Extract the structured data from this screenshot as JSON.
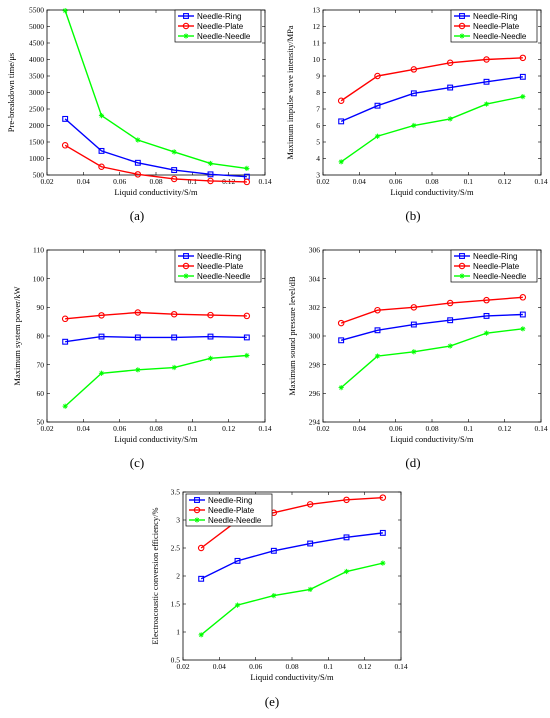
{
  "chart_data": [
    {
      "type": "line",
      "panel_label": "(a)",
      "xlabel": "Liquid conductivity/S/m",
      "ylabel": "Pre-breakdown time/μs",
      "xlim": [
        0.02,
        0.14
      ],
      "ylim": [
        500,
        5500
      ],
      "xticks": [
        "0.02",
        "0.04",
        "0.06",
        "0.08",
        "0.1",
        "0.12",
        "0.14"
      ],
      "yticks": [
        "500",
        "1000",
        "1500",
        "2000",
        "2500",
        "3000",
        "3500",
        "4000",
        "4500",
        "5000",
        "5500"
      ],
      "legend_position": "top-right",
      "x": [
        0.03,
        0.05,
        0.07,
        0.09,
        0.11,
        0.13
      ],
      "series": [
        {
          "name": "Needle-Ring",
          "color": "#0000ff",
          "marker": "square",
          "values": [
            2200,
            1230,
            870,
            650,
            520,
            450
          ]
        },
        {
          "name": "Needle-Plate",
          "color": "#ff0000",
          "marker": "circle",
          "values": [
            1400,
            750,
            520,
            380,
            320,
            290
          ]
        },
        {
          "name": "Needle-Needle",
          "color": "#00ff00",
          "marker": "star",
          "values": [
            5480,
            2300,
            1560,
            1200,
            850,
            700
          ]
        }
      ]
    },
    {
      "type": "line",
      "panel_label": "(b)",
      "xlabel": "Liquid conductivity/S/m",
      "ylabel": "Maximum impulse wave intensity/MPa",
      "xlim": [
        0.02,
        0.14
      ],
      "ylim": [
        3,
        13
      ],
      "xticks": [
        "0.02",
        "0.04",
        "0.06",
        "0.08",
        "0.1",
        "0.12",
        "0.14"
      ],
      "yticks": [
        "3",
        "4",
        "5",
        "6",
        "7",
        "8",
        "9",
        "10",
        "11",
        "12",
        "13"
      ],
      "legend_position": "top-right",
      "x": [
        0.03,
        0.05,
        0.07,
        0.09,
        0.11,
        0.13
      ],
      "series": [
        {
          "name": "Needle-Ring",
          "color": "#0000ff",
          "marker": "square",
          "values": [
            6.25,
            7.2,
            7.95,
            8.3,
            8.65,
            8.95
          ]
        },
        {
          "name": "Needle-Plate",
          "color": "#ff0000",
          "marker": "circle",
          "values": [
            7.5,
            9.0,
            9.4,
            9.8,
            10.0,
            10.1
          ]
        },
        {
          "name": "Needle-Needle",
          "color": "#00ff00",
          "marker": "star",
          "values": [
            3.8,
            5.35,
            6.0,
            6.4,
            7.3,
            7.75
          ]
        }
      ]
    },
    {
      "type": "line",
      "panel_label": "(c)",
      "xlabel": "Liquid conductivity/S/m",
      "ylabel": "Maximum system power/kW",
      "xlim": [
        0.02,
        0.14
      ],
      "ylim": [
        50,
        110
      ],
      "xticks": [
        "0.02",
        "0.04",
        "0.06",
        "0.08",
        "0.1",
        "0.12",
        "0.14"
      ],
      "yticks": [
        "50",
        "60",
        "70",
        "80",
        "90",
        "100",
        "110"
      ],
      "legend_position": "top-right",
      "x": [
        0.03,
        0.05,
        0.07,
        0.09,
        0.11,
        0.13
      ],
      "series": [
        {
          "name": "Needle-Ring",
          "color": "#0000ff",
          "marker": "square",
          "values": [
            78,
            79.8,
            79.5,
            79.5,
            79.8,
            79.5
          ]
        },
        {
          "name": "Needle-Plate",
          "color": "#ff0000",
          "marker": "circle",
          "values": [
            86,
            87.2,
            88.2,
            87.6,
            87.3,
            87
          ]
        },
        {
          "name": "Needle-Needle",
          "color": "#00ff00",
          "marker": "star",
          "values": [
            55.5,
            67,
            68.2,
            69,
            72.2,
            73.2
          ]
        }
      ]
    },
    {
      "type": "line",
      "panel_label": "(d)",
      "xlabel": "Liquid conductivity/S/m",
      "ylabel": "Maximum sound pressure level/dB",
      "xlim": [
        0.02,
        0.14
      ],
      "ylim": [
        294,
        306
      ],
      "xticks": [
        "0.02",
        "0.04",
        "0.06",
        "0.08",
        "0.1",
        "0.12",
        "0.14"
      ],
      "yticks": [
        "294",
        "296",
        "298",
        "300",
        "302",
        "304",
        "306"
      ],
      "legend_position": "top-right",
      "x": [
        0.03,
        0.05,
        0.07,
        0.09,
        0.11,
        0.13
      ],
      "series": [
        {
          "name": "Needle-Ring",
          "color": "#0000ff",
          "marker": "square",
          "values": [
            299.7,
            300.4,
            300.8,
            301.1,
            301.4,
            301.5
          ]
        },
        {
          "name": "Needle-Plate",
          "color": "#ff0000",
          "marker": "circle",
          "values": [
            300.9,
            301.8,
            302.0,
            302.3,
            302.5,
            302.7
          ]
        },
        {
          "name": "Needle-Needle",
          "color": "#00ff00",
          "marker": "star",
          "values": [
            296.4,
            298.6,
            298.9,
            299.3,
            300.2,
            300.5
          ]
        }
      ]
    },
    {
      "type": "line",
      "panel_label": "(e)",
      "xlabel": "Liquid conductivity/S/m",
      "ylabel": "Electroacoustic conversion efficiency/%",
      "xlim": [
        0.02,
        0.14
      ],
      "ylim": [
        0.5,
        3.5
      ],
      "xticks": [
        "0.02",
        "0.04",
        "0.06",
        "0.08",
        "0.1",
        "0.12",
        "0.14"
      ],
      "yticks": [
        "0.5",
        "1",
        "1.5",
        "2",
        "2.5",
        "3",
        "3.5"
      ],
      "legend_position": "top-left",
      "x": [
        0.03,
        0.05,
        0.07,
        0.09,
        0.11,
        0.13
      ],
      "series": [
        {
          "name": "Needle-Ring",
          "color": "#0000ff",
          "marker": "square",
          "values": [
            1.95,
            2.27,
            2.45,
            2.58,
            2.69,
            2.77
          ]
        },
        {
          "name": "Needle-Plate",
          "color": "#ff0000",
          "marker": "circle",
          "values": [
            2.5,
            2.99,
            3.13,
            3.28,
            3.36,
            3.4
          ]
        },
        {
          "name": "Needle-Needle",
          "color": "#00ff00",
          "marker": "star",
          "values": [
            0.95,
            1.48,
            1.65,
            1.76,
            2.08,
            2.23
          ]
        }
      ]
    }
  ]
}
